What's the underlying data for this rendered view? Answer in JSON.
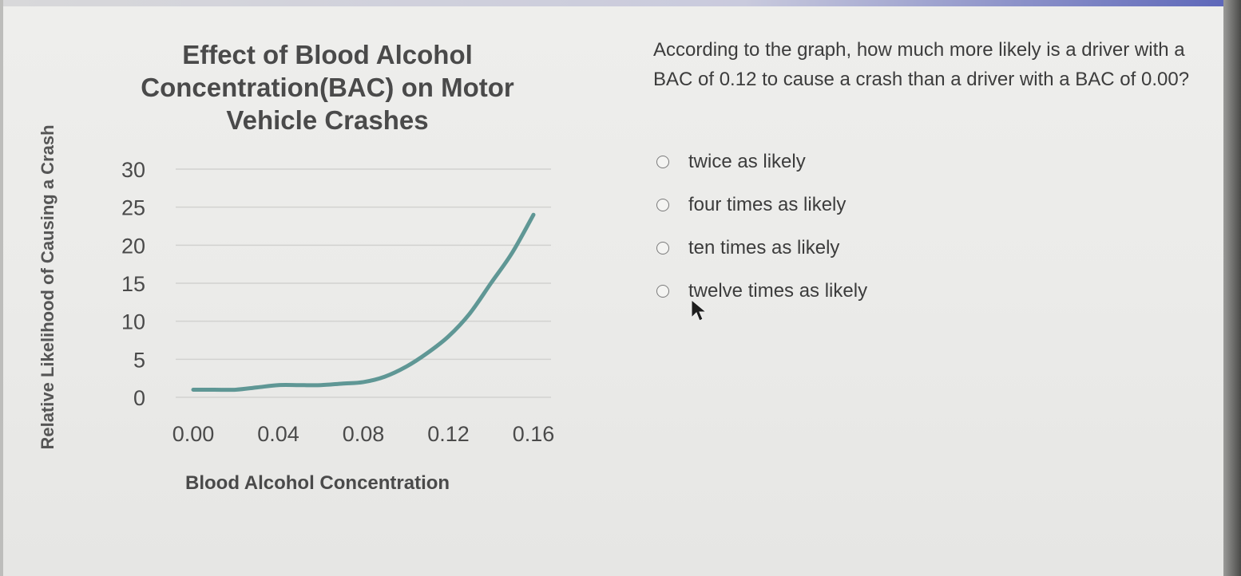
{
  "question": {
    "text": "According to the graph, how much more likely is a driver with a BAC of 0.12 to cause a crash than a driver with a BAC of 0.00?",
    "options": [
      {
        "label": "twice as likely",
        "selected": false
      },
      {
        "label": "four times as likely",
        "selected": false
      },
      {
        "label": "ten times as likely",
        "selected": false
      },
      {
        "label": "twelve times as likely",
        "selected": false
      }
    ]
  },
  "colors": {
    "line": "#5f9795",
    "grid": "#d2d2d0",
    "text": "#4a4a4a"
  },
  "chart_data": {
    "type": "line",
    "title": "Effect of Blood Alcohol Concentration(BAC) on Motor Vehicle Crashes",
    "xlabel": "Blood Alcohol Concentration",
    "ylabel": "Relative Likelihood of Causing a Crash",
    "x_ticks": [
      "0.00",
      "0.04",
      "0.08",
      "0.12",
      "0.16"
    ],
    "y_ticks": [
      "0",
      "5",
      "10",
      "15",
      "20",
      "25",
      "30"
    ],
    "xlim": [
      0.0,
      0.16
    ],
    "ylim": [
      0,
      30
    ],
    "grid": true,
    "series": [
      {
        "x": [
          0.0,
          0.01,
          0.02,
          0.03,
          0.04,
          0.05,
          0.06,
          0.07,
          0.08,
          0.09,
          0.1,
          0.11,
          0.12,
          0.13,
          0.14,
          0.15,
          0.16
        ],
        "values": [
          1,
          1,
          1,
          1.3,
          1.6,
          1.6,
          1.6,
          1.8,
          2,
          2.7,
          4,
          5.8,
          8,
          11,
          15,
          19,
          24
        ]
      }
    ]
  }
}
